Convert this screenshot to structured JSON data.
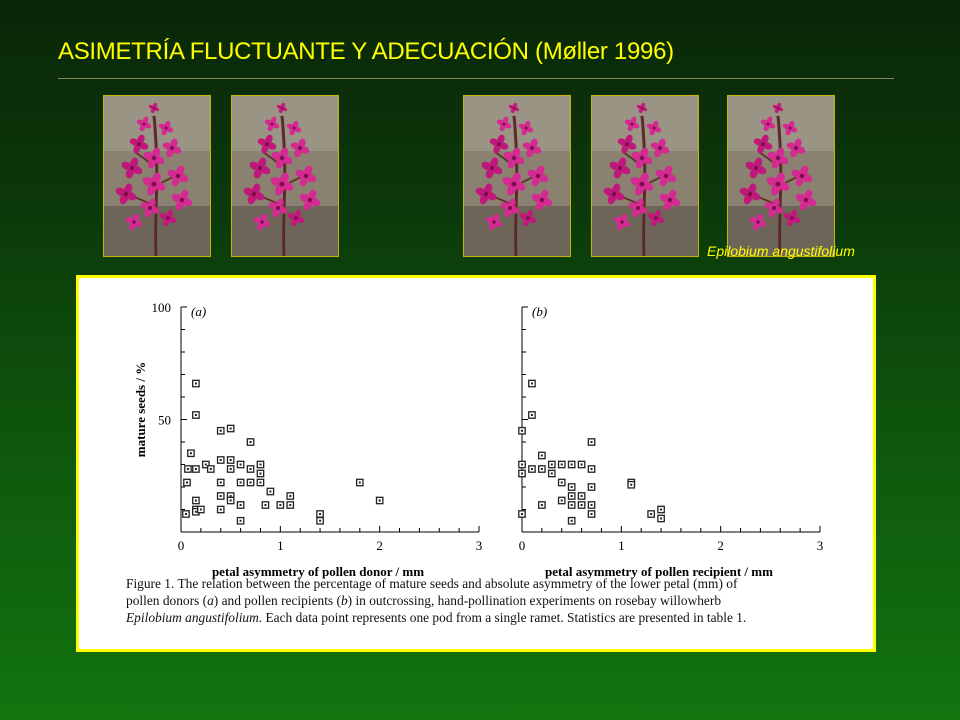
{
  "slide": {
    "title": "ASIMETRÍA FLUCTUANTE Y ADECUACIÓN (Møller 1996)",
    "species_caption": "Epilobium angustifolium"
  },
  "photos": [
    {
      "label": "fireweed-photo-1"
    },
    {
      "label": "fireweed-photo-2"
    },
    {
      "label": "fireweed-photo-3"
    },
    {
      "label": "fireweed-photo-4"
    },
    {
      "label": "fireweed-photo-5"
    }
  ],
  "colors": {
    "title": "#ffff00",
    "panel_border": "#ffff00",
    "marker": "#222222"
  },
  "chart_data": [
    {
      "type": "scatter",
      "panel_label": "(a)",
      "xlabel": "petal asymmetry of pollen donor / mm",
      "ylabel": "mature seeds / %",
      "xlim": [
        0,
        3
      ],
      "ylim": [
        0,
        100
      ],
      "x_ticks": [
        0,
        1,
        2,
        3
      ],
      "y_ticks": [
        50,
        100
      ],
      "x_tick_labels": [
        "0",
        "1",
        "2",
        "3"
      ],
      "y_tick_labels": [
        "50",
        "100"
      ],
      "points": [
        [
          0.05,
          8
        ],
        [
          0.06,
          22
        ],
        [
          0.07,
          28
        ],
        [
          0.1,
          35
        ],
        [
          0.15,
          66
        ],
        [
          0.15,
          52
        ],
        [
          0.15,
          28
        ],
        [
          0.15,
          14
        ],
        [
          0.15,
          10
        ],
        [
          0.15,
          9
        ],
        [
          0.2,
          10
        ],
        [
          0.25,
          30
        ],
        [
          0.3,
          28
        ],
        [
          0.4,
          45
        ],
        [
          0.4,
          32
        ],
        [
          0.4,
          22
        ],
        [
          0.4,
          16
        ],
        [
          0.4,
          10
        ],
        [
          0.5,
          46
        ],
        [
          0.5,
          32
        ],
        [
          0.5,
          28
        ],
        [
          0.5,
          16
        ],
        [
          0.5,
          14
        ],
        [
          0.6,
          30
        ],
        [
          0.6,
          22
        ],
        [
          0.6,
          12
        ],
        [
          0.6,
          5
        ],
        [
          0.7,
          40
        ],
        [
          0.7,
          28
        ],
        [
          0.7,
          22
        ],
        [
          0.8,
          30
        ],
        [
          0.8,
          26
        ],
        [
          0.8,
          22
        ],
        [
          0.85,
          12
        ],
        [
          0.9,
          18
        ],
        [
          1.0,
          12
        ],
        [
          1.1,
          16
        ],
        [
          1.1,
          12
        ],
        [
          1.4,
          8
        ],
        [
          1.4,
          5
        ],
        [
          1.8,
          22
        ],
        [
          2.0,
          14
        ]
      ]
    },
    {
      "type": "scatter",
      "panel_label": "(b)",
      "xlabel": "petal asymmetry of pollen recipient / mm",
      "ylabel": "",
      "xlim": [
        0,
        3
      ],
      "ylim": [
        0,
        100
      ],
      "x_ticks": [
        0,
        1,
        2,
        3
      ],
      "x_tick_labels": [
        "0",
        "1",
        "2",
        "3"
      ],
      "points": [
        [
          0.0,
          45
        ],
        [
          0.0,
          30
        ],
        [
          0.0,
          26
        ],
        [
          0.0,
          8
        ],
        [
          0.1,
          66
        ],
        [
          0.1,
          52
        ],
        [
          0.1,
          28
        ],
        [
          0.2,
          34
        ],
        [
          0.2,
          28
        ],
        [
          0.2,
          12
        ],
        [
          0.3,
          30
        ],
        [
          0.3,
          26
        ],
        [
          0.4,
          30
        ],
        [
          0.4,
          22
        ],
        [
          0.4,
          14
        ],
        [
          0.5,
          30
        ],
        [
          0.5,
          20
        ],
        [
          0.5,
          16
        ],
        [
          0.5,
          12
        ],
        [
          0.5,
          5
        ],
        [
          0.6,
          30
        ],
        [
          0.6,
          16
        ],
        [
          0.6,
          12
        ],
        [
          0.7,
          40
        ],
        [
          0.7,
          28
        ],
        [
          0.7,
          20
        ],
        [
          0.7,
          12
        ],
        [
          0.7,
          8
        ],
        [
          1.1,
          22
        ],
        [
          1.1,
          21
        ],
        [
          1.3,
          8
        ],
        [
          1.4,
          10
        ],
        [
          1.4,
          6
        ]
      ]
    }
  ],
  "figure_caption": {
    "line1_a": "Figure 1. The relation between the percentage of mature seeds and absolute asymmetry of the lower petal (mm) of",
    "line2_a": "pollen donors (",
    "line2_b": "a",
    "line2_c": ") and pollen recipients (",
    "line2_d": "b",
    "line2_e": ") in outcrossing, hand-pollination experiments on rosebay willowherb",
    "line3_a": "Epilobium angustifolium",
    "line3_b": ". Each data point represents one pod from a single ramet. Statistics are presented in table 1."
  }
}
